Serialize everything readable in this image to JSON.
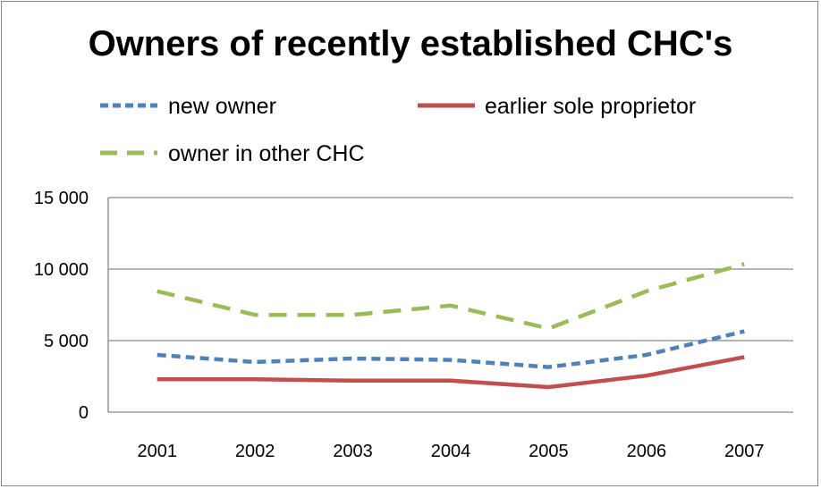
{
  "chart_data": {
    "type": "line",
    "title": "Owners of recently established CHC's",
    "xlabel": "",
    "ylabel": "",
    "categories": [
      "2001",
      "2002",
      "2003",
      "2004",
      "2005",
      "2006",
      "2007"
    ],
    "ylim": [
      0,
      15000
    ],
    "yticks": [
      0,
      5000,
      10000,
      15000
    ],
    "ytick_labels": [
      "0",
      "5 000",
      "10 000",
      "15 000"
    ],
    "grid": true,
    "legend_position": "top",
    "series": [
      {
        "name": "new owner",
        "color": "#4F81BD",
        "style": "dashed-short",
        "values": [
          4000,
          3500,
          3750,
          3650,
          3150,
          4000,
          5650
        ]
      },
      {
        "name": "earlier sole proprietor",
        "color": "#C0504D",
        "style": "solid",
        "values": [
          2300,
          2300,
          2200,
          2200,
          1750,
          2550,
          3850
        ]
      },
      {
        "name": "owner in other CHC",
        "color": "#9BBB59",
        "style": "dashed-long",
        "values": [
          8450,
          6800,
          6800,
          7450,
          5850,
          8450,
          10350
        ]
      }
    ]
  }
}
